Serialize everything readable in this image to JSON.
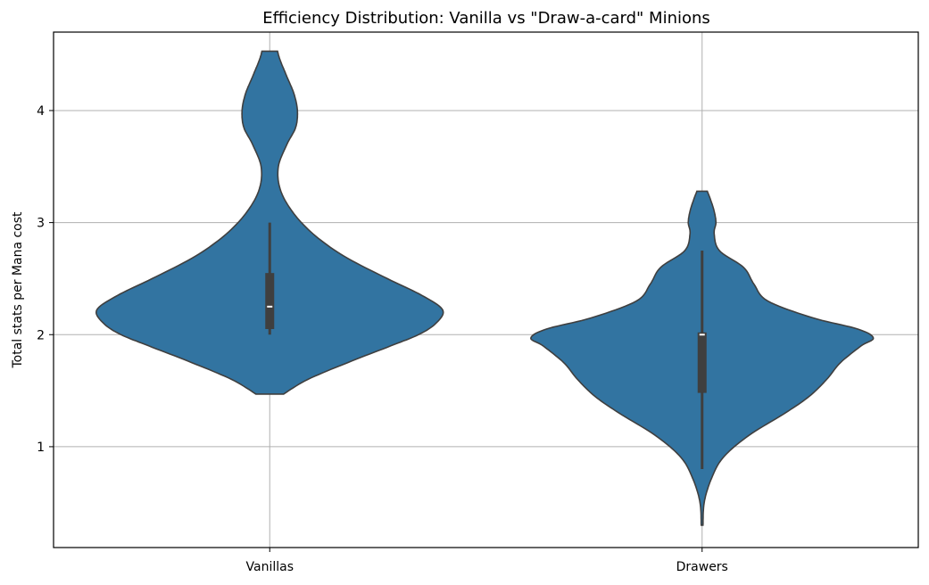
{
  "chart_data": {
    "type": "violin",
    "title": "Efficiency Distribution: Vanilla vs \"Draw-a-card\" Minions",
    "xlabel": "",
    "ylabel": "Total stats per Mana cost",
    "categories": [
      "Vanillas",
      "Drawers"
    ],
    "ylim": [
      0.1,
      4.7
    ],
    "yticks": [
      1,
      2,
      3,
      4
    ],
    "grid": true,
    "color": "#3274a1",
    "series": [
      {
        "name": "Vanillas",
        "box": {
          "whisker_low": 2.0,
          "q1": 2.05,
          "median": 2.25,
          "q3": 2.55,
          "whisker_high": 3.0
        },
        "density": [
          [
            1.47,
            0.08
          ],
          [
            1.6,
            0.22
          ],
          [
            1.75,
            0.45
          ],
          [
            1.9,
            0.7
          ],
          [
            2.0,
            0.86
          ],
          [
            2.1,
            0.96
          ],
          [
            2.22,
            1.0
          ],
          [
            2.35,
            0.88
          ],
          [
            2.5,
            0.68
          ],
          [
            2.7,
            0.43
          ],
          [
            2.9,
            0.25
          ],
          [
            3.1,
            0.13
          ],
          [
            3.3,
            0.06
          ],
          [
            3.5,
            0.05
          ],
          [
            3.7,
            0.1
          ],
          [
            3.85,
            0.15
          ],
          [
            4.0,
            0.16
          ],
          [
            4.15,
            0.14
          ],
          [
            4.3,
            0.1
          ],
          [
            4.45,
            0.06
          ],
          [
            4.53,
            0.045
          ]
        ]
      },
      {
        "name": "Drawers",
        "box": {
          "whisker_low": 0.8,
          "q1": 1.48,
          "median": 2.0,
          "q3": 2.02,
          "whisker_high": 2.75
        },
        "density": [
          [
            0.3,
            0.005
          ],
          [
            0.5,
            0.012
          ],
          [
            0.7,
            0.05
          ],
          [
            0.9,
            0.12
          ],
          [
            1.1,
            0.27
          ],
          [
            1.3,
            0.48
          ],
          [
            1.45,
            0.62
          ],
          [
            1.6,
            0.72
          ],
          [
            1.75,
            0.8
          ],
          [
            1.9,
            0.92
          ],
          [
            1.97,
            0.99
          ],
          [
            2.05,
            0.9
          ],
          [
            2.15,
            0.64
          ],
          [
            2.3,
            0.38
          ],
          [
            2.45,
            0.3
          ],
          [
            2.6,
            0.24
          ],
          [
            2.75,
            0.1
          ],
          [
            2.9,
            0.07
          ],
          [
            3.0,
            0.08
          ],
          [
            3.1,
            0.07
          ],
          [
            3.2,
            0.05
          ],
          [
            3.28,
            0.03
          ]
        ]
      }
    ]
  }
}
